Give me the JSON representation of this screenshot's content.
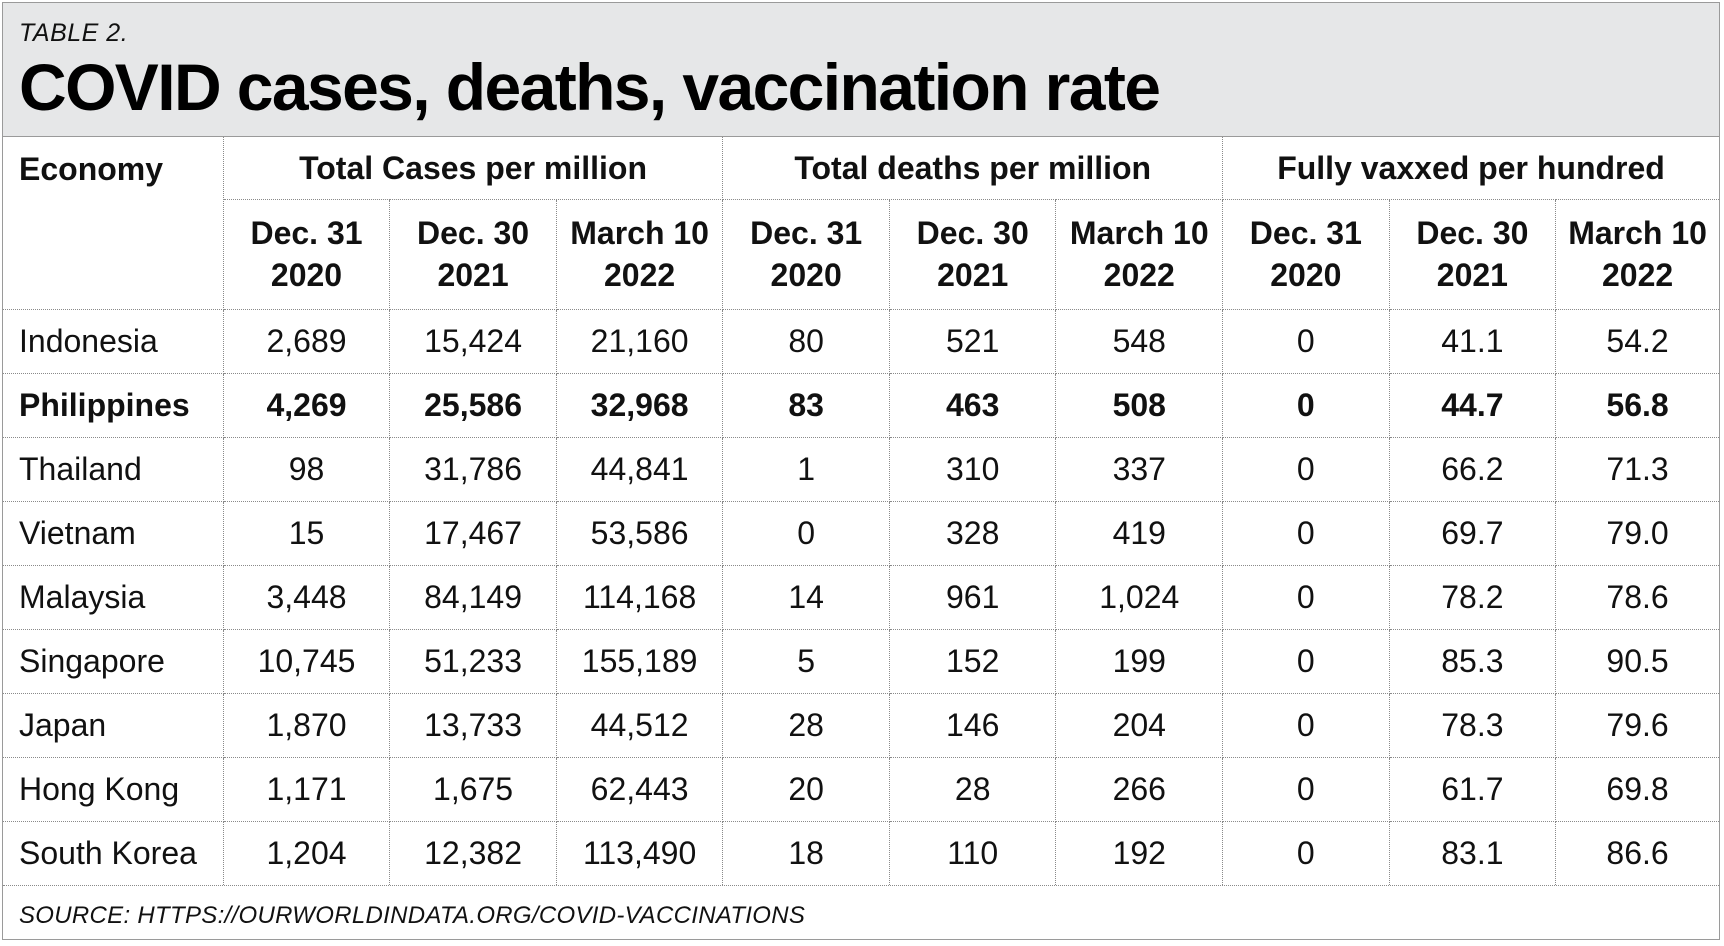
{
  "table_label": "TABLE 2.",
  "title": "COVID cases, deaths, vaccination rate",
  "header": {
    "economy": "Economy",
    "groups": [
      "Total Cases per million",
      "Total deaths per million",
      "Fully vaxxed per hundred"
    ],
    "subheaders": [
      {
        "line1": "Dec. 31",
        "line2": "2020"
      },
      {
        "line1": "Dec. 30",
        "line2": "2021"
      },
      {
        "line1": "March 10",
        "line2": "2022"
      },
      {
        "line1": "Dec. 31",
        "line2": "2020"
      },
      {
        "line1": "Dec. 30",
        "line2": "2021"
      },
      {
        "line1": "March 10",
        "line2": "2022"
      },
      {
        "line1": "Dec. 31",
        "line2": "2020"
      },
      {
        "line1": "Dec. 30",
        "line2": "2021"
      },
      {
        "line1": "March 10",
        "line2": "2022"
      }
    ]
  },
  "rows": [
    {
      "name": "Indonesia",
      "values": [
        "2,689",
        "15,424",
        "21,160",
        "80",
        "521",
        "548",
        "0",
        "41.1",
        "54.2"
      ]
    },
    {
      "name": "Philippines",
      "values": [
        "4,269",
        "25,586",
        "32,968",
        "83",
        "463",
        "508",
        "0",
        "44.7",
        "56.8"
      ]
    },
    {
      "name": "Thailand",
      "values": [
        "98",
        "31,786",
        "44,841",
        "1",
        "310",
        "337",
        "0",
        "66.2",
        "71.3"
      ]
    },
    {
      "name": "Vietnam",
      "values": [
        "15",
        "17,467",
        "53,586",
        "0",
        "328",
        "419",
        "0",
        "69.7",
        "79.0"
      ]
    },
    {
      "name": "Malaysia",
      "values": [
        "3,448",
        "84,149",
        "114,168",
        "14",
        "961",
        "1,024",
        "0",
        "78.2",
        "78.6"
      ]
    },
    {
      "name": "Singapore",
      "values": [
        "10,745",
        "51,233",
        "155,189",
        "5",
        "152",
        "199",
        "0",
        "85.3",
        "90.5"
      ]
    },
    {
      "name": "Japan",
      "values": [
        "1,870",
        "13,733",
        "44,512",
        "28",
        "146",
        "204",
        "0",
        "78.3",
        "79.6"
      ]
    },
    {
      "name": "Hong Kong",
      "values": [
        "1,171",
        "1,675",
        "62,443",
        "20",
        "28",
        "266",
        "0",
        "61.7",
        "69.8"
      ]
    },
    {
      "name": "South Korea",
      "values": [
        "1,204",
        "12,382",
        "113,490",
        "18",
        "110",
        "192",
        "0",
        "83.1",
        "86.6"
      ]
    }
  ],
  "source": "SOURCE: HTTPS://OURWORLDINDATA.ORG/COVID-VACCINATIONS"
}
